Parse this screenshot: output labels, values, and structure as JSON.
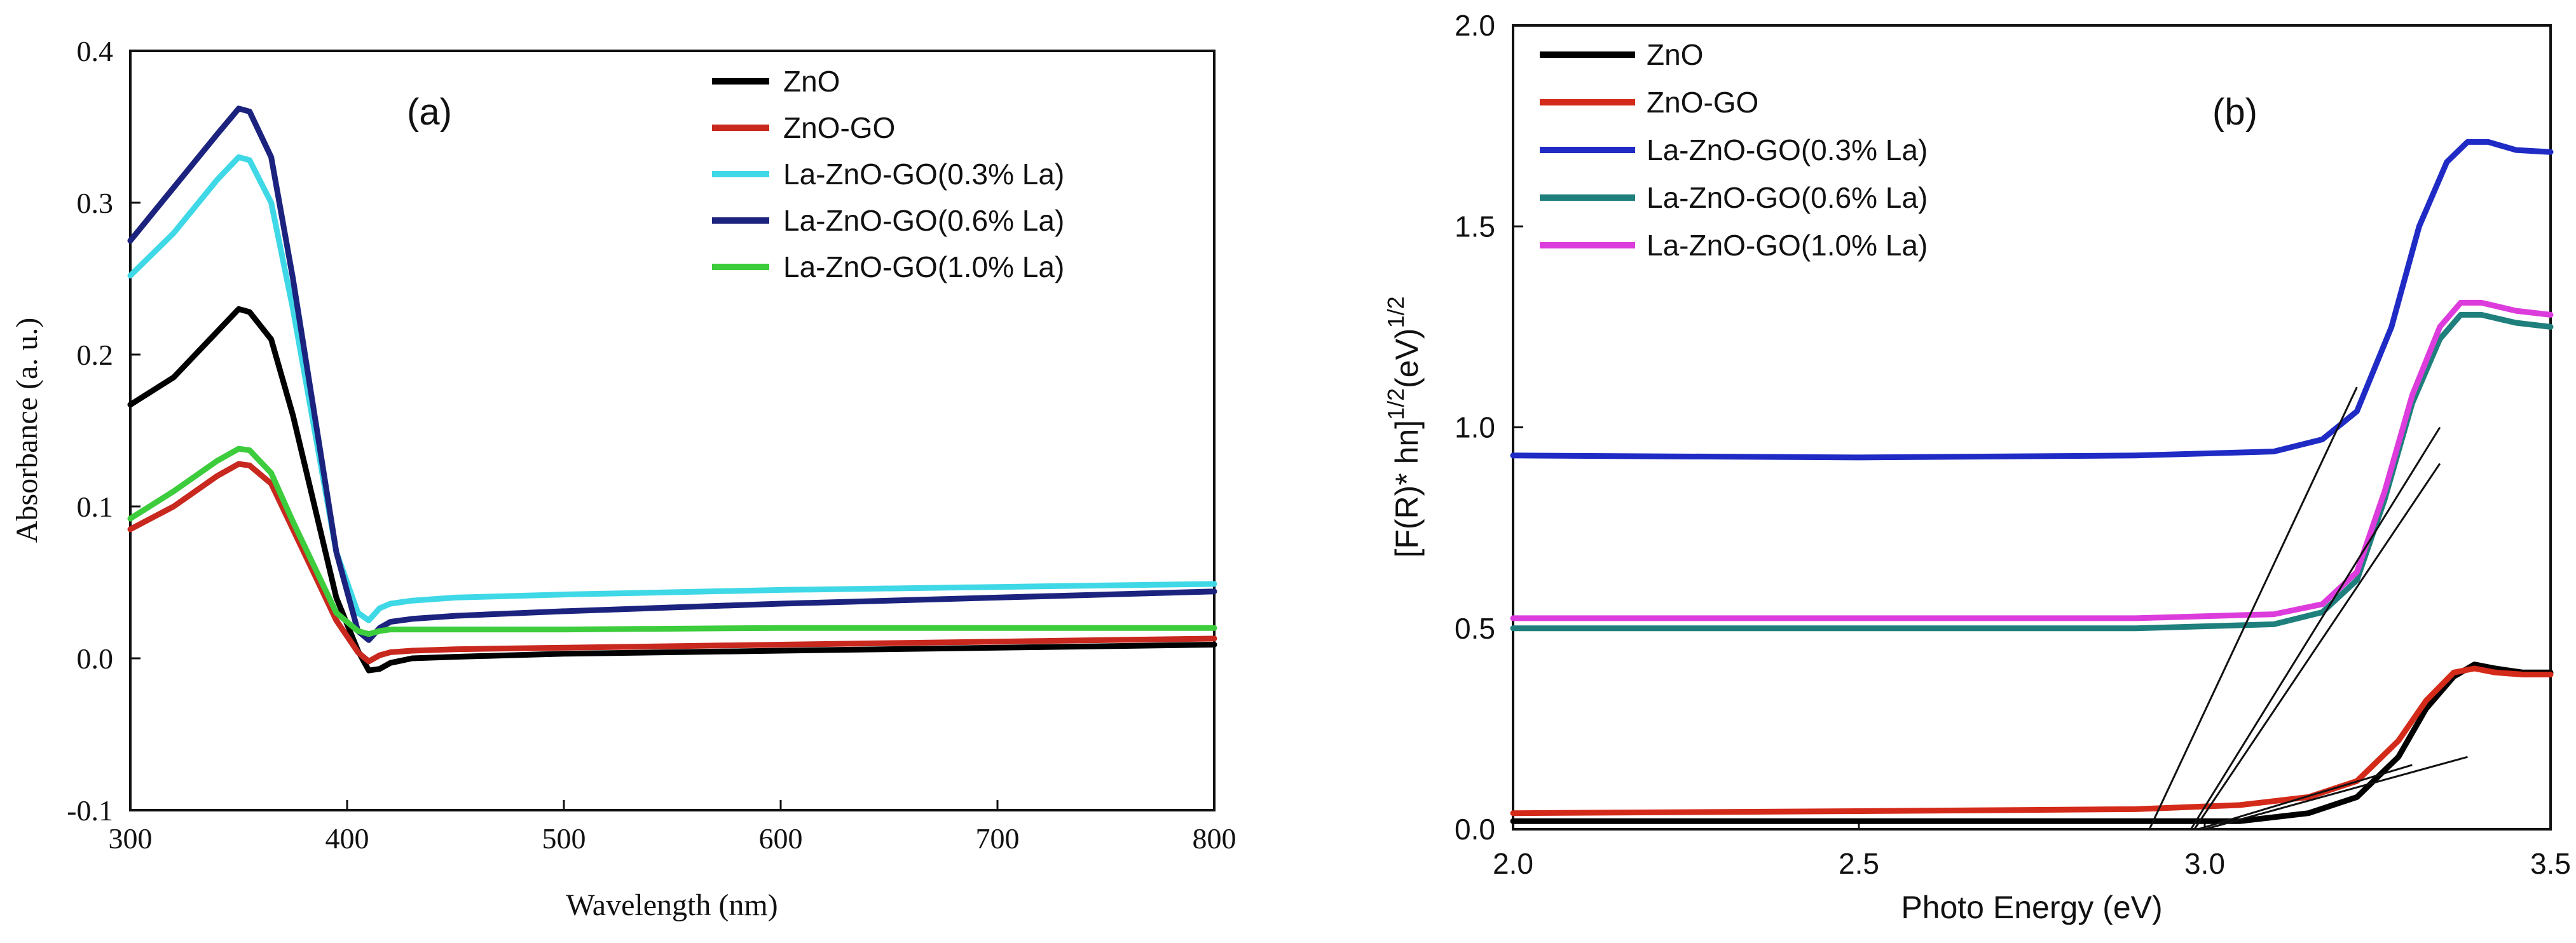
{
  "chart_data": [
    {
      "panel_label": "(a)",
      "type": "line",
      "xlabel": "Wavelength (nm)",
      "ylabel": "Absorbance (a. u.)",
      "xlim": [
        300,
        800
      ],
      "ylim": [
        -0.1,
        0.4
      ],
      "xticks": [
        300,
        400,
        500,
        600,
        700,
        800
      ],
      "xtick_labels": [
        "300",
        "400",
        "500",
        "600",
        "700",
        "800"
      ],
      "yticks": [
        -0.1,
        0.0,
        0.1,
        0.2,
        0.3,
        0.4
      ],
      "ytick_labels": [
        "-0.1",
        "0.0",
        "0.1",
        "0.2",
        "0.3",
        "0.4"
      ],
      "legend_position": "top-right",
      "series": [
        {
          "name": "ZnO",
          "color": "#000000",
          "x": [
            300,
            320,
            340,
            350,
            355,
            365,
            375,
            385,
            395,
            405,
            410,
            415,
            420,
            430,
            450,
            500,
            600,
            700,
            800
          ],
          "y": [
            0.167,
            0.185,
            0.215,
            0.23,
            0.228,
            0.21,
            0.16,
            0.1,
            0.04,
            0.005,
            -0.008,
            -0.007,
            -0.003,
            0.0,
            0.001,
            0.003,
            0.005,
            0.007,
            0.009
          ]
        },
        {
          "name": "ZnO-GO",
          "color": "#c8281e",
          "x": [
            300,
            320,
            340,
            350,
            355,
            365,
            375,
            385,
            395,
            405,
            410,
            415,
            420,
            430,
            450,
            500,
            600,
            700,
            800
          ],
          "y": [
            0.085,
            0.1,
            0.12,
            0.128,
            0.127,
            0.115,
            0.085,
            0.055,
            0.025,
            0.004,
            -0.002,
            0.002,
            0.004,
            0.005,
            0.006,
            0.007,
            0.009,
            0.011,
            0.013
          ]
        },
        {
          "name": "La-ZnO-GO(0.3% La)",
          "color": "#3fd8e6",
          "x": [
            300,
            320,
            340,
            350,
            355,
            365,
            375,
            385,
            395,
            405,
            410,
            415,
            420,
            430,
            450,
            500,
            600,
            700,
            800
          ],
          "y": [
            0.252,
            0.28,
            0.315,
            0.33,
            0.328,
            0.3,
            0.23,
            0.15,
            0.07,
            0.03,
            0.025,
            0.033,
            0.036,
            0.038,
            0.04,
            0.042,
            0.045,
            0.047,
            0.049
          ]
        },
        {
          "name": "La-ZnO-GO(0.6% La)",
          "color": "#1c237e",
          "x": [
            300,
            320,
            340,
            350,
            355,
            365,
            375,
            385,
            395,
            405,
            410,
            415,
            420,
            430,
            450,
            500,
            600,
            700,
            800
          ],
          "y": [
            0.275,
            0.31,
            0.345,
            0.362,
            0.36,
            0.33,
            0.25,
            0.16,
            0.07,
            0.018,
            0.012,
            0.02,
            0.024,
            0.026,
            0.028,
            0.031,
            0.036,
            0.04,
            0.044
          ]
        },
        {
          "name": "La-ZnO-GO(1.0% La)",
          "color": "#3ccc3c",
          "x": [
            300,
            320,
            340,
            350,
            355,
            365,
            375,
            385,
            395,
            405,
            410,
            415,
            420,
            430,
            450,
            500,
            600,
            700,
            800
          ],
          "y": [
            0.092,
            0.11,
            0.13,
            0.138,
            0.137,
            0.122,
            0.09,
            0.06,
            0.03,
            0.018,
            0.016,
            0.018,
            0.019,
            0.019,
            0.019,
            0.019,
            0.02,
            0.02,
            0.02
          ]
        }
      ]
    },
    {
      "panel_label": "(b)",
      "type": "line",
      "xlabel": "Photo Energy (eV)",
      "ylabel_main": "[F(R)* hn]",
      "ylabel_sup1": "1/2",
      "ylabel_mid": "(eV)",
      "ylabel_sup2": "1/2",
      "xlim": [
        2.0,
        3.5
      ],
      "ylim": [
        0.0,
        2.0
      ],
      "xticks": [
        2.0,
        2.5,
        3.0,
        3.5
      ],
      "xtick_labels": [
        "2.0",
        "2.5",
        "3.0",
        "3.5"
      ],
      "yticks": [
        0.0,
        0.5,
        1.0,
        1.5,
        2.0
      ],
      "ytick_labels": [
        "0.0",
        "0.5",
        "1.0",
        "1.5",
        "2.0"
      ],
      "legend_position": "top-left",
      "series": [
        {
          "name": "ZnO",
          "color": "#000000",
          "x": [
            2.0,
            2.5,
            2.9,
            3.05,
            3.15,
            3.22,
            3.28,
            3.32,
            3.36,
            3.39,
            3.42,
            3.46,
            3.5
          ],
          "y": [
            0.02,
            0.02,
            0.02,
            0.02,
            0.04,
            0.08,
            0.18,
            0.3,
            0.38,
            0.41,
            0.4,
            0.39,
            0.39
          ]
        },
        {
          "name": "ZnO-GO",
          "color": "#d42a1a",
          "x": [
            2.0,
            2.5,
            2.9,
            3.05,
            3.15,
            3.22,
            3.28,
            3.32,
            3.36,
            3.39,
            3.42,
            3.46,
            3.5
          ],
          "y": [
            0.04,
            0.045,
            0.05,
            0.06,
            0.08,
            0.12,
            0.22,
            0.32,
            0.39,
            0.4,
            0.39,
            0.385,
            0.385
          ]
        },
        {
          "name": "La-ZnO-GO(0.3% La)",
          "color": "#1f2bc4",
          "x": [
            2.0,
            2.5,
            2.9,
            3.1,
            3.17,
            3.22,
            3.27,
            3.31,
            3.35,
            3.38,
            3.41,
            3.45,
            3.5
          ],
          "y": [
            0.93,
            0.925,
            0.93,
            0.94,
            0.97,
            1.04,
            1.25,
            1.5,
            1.66,
            1.71,
            1.71,
            1.69,
            1.685
          ]
        },
        {
          "name": "La-ZnO-GO(0.6% La)",
          "color": "#1e7f7c",
          "x": [
            2.0,
            2.5,
            2.9,
            3.1,
            3.17,
            3.22,
            3.26,
            3.3,
            3.34,
            3.37,
            3.4,
            3.45,
            3.5
          ],
          "y": [
            0.5,
            0.5,
            0.5,
            0.51,
            0.54,
            0.62,
            0.82,
            1.06,
            1.22,
            1.28,
            1.28,
            1.26,
            1.25
          ]
        },
        {
          "name": "La-ZnO-GO(1.0% La)",
          "color": "#dd3cdd",
          "x": [
            2.0,
            2.5,
            2.9,
            3.1,
            3.17,
            3.22,
            3.26,
            3.3,
            3.34,
            3.37,
            3.4,
            3.45,
            3.5
          ],
          "y": [
            0.525,
            0.525,
            0.525,
            0.535,
            0.56,
            0.64,
            0.84,
            1.08,
            1.25,
            1.31,
            1.31,
            1.29,
            1.28
          ]
        }
      ],
      "tangent_lines": [
        {
          "x": [
            2.92,
            3.22
          ],
          "y": [
            0.0,
            1.1
          ]
        },
        {
          "x": [
            2.98,
            3.34
          ],
          "y": [
            0.0,
            1.0
          ]
        },
        {
          "x": [
            2.985,
            3.34
          ],
          "y": [
            0.0,
            0.91
          ]
        },
        {
          "x": [
            2.99,
            3.3
          ],
          "y": [
            0.0,
            0.16
          ]
        },
        {
          "x": [
            3.0,
            3.38
          ],
          "y": [
            0.0,
            0.18
          ]
        }
      ]
    }
  ]
}
